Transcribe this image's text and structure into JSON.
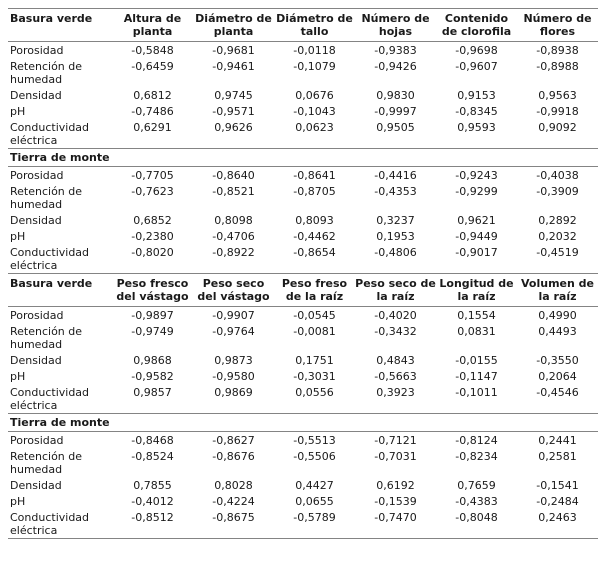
{
  "page": {
    "background": "#ffffff",
    "text_color": "#1a1a1a",
    "line_color": "#848484"
  },
  "row_labels": [
    "Porosidad",
    "Retención de humedad",
    "Densidad",
    "pH",
    "Conductividad eléctrica"
  ],
  "blocks": [
    {
      "header_title": "Basura verde",
      "columns": [
        "Altura de planta",
        "Diámetro de planta",
        "Diámetro de tallo",
        "Número de hojas",
        "Contenido de clorofila",
        "Número de flores"
      ],
      "header_section_rows": [
        [
          "-0,5848",
          "-0,9681",
          "-0,0118",
          "-0,9383",
          "-0,9698",
          "-0,8938"
        ],
        [
          "-0,6459",
          "-0,9461",
          "-0,1079",
          "-0,9426",
          "-0,9607",
          "-0,8988"
        ],
        [
          "0,6812",
          "0,9745",
          "0,0676",
          "0,9830",
          "0,9153",
          "0,9563"
        ],
        [
          "-0,7486",
          "-0,9571",
          "-0,1043",
          "-0,9997",
          "-0,8345",
          "-0,9918"
        ],
        [
          "0,6291",
          "0,9626",
          "0,0623",
          "0,9505",
          "0,9593",
          "0,9092"
        ]
      ],
      "band_title": "Tierra de monte",
      "band_section_rows": [
        [
          "-0,7705",
          "-0,8640",
          "-0,8641",
          "-0,4416",
          "-0,9243",
          "-0,4038"
        ],
        [
          "-0,7623",
          "-0,8521",
          "-0,8705",
          "-0,4353",
          "-0,9299",
          "-0,3909"
        ],
        [
          "0,6852",
          "0,8098",
          "0,8093",
          "0,3237",
          "0,9621",
          "0,2892"
        ],
        [
          "-0,2380",
          "-0,4706",
          "-0,4462",
          "0,1953",
          "-0,9449",
          "0,2032"
        ],
        [
          "-0,8020",
          "-0,8922",
          "-0,8654",
          "-0,4806",
          "-0,9017",
          "-0,4519"
        ]
      ]
    },
    {
      "header_title": "Basura verde",
      "columns": [
        "Peso fresco del vástago",
        "Peso seco del vástago",
        "Peso freso de la raíz",
        "Peso seco de la raíz",
        "Longitud de la raíz",
        "Volumen de la raíz"
      ],
      "header_section_rows": [
        [
          "-0,9897",
          "-0,9907",
          "-0,0545",
          "-0,4020",
          "0,1554",
          "0,4990"
        ],
        [
          "-0,9749",
          "-0,9764",
          "-0,0081",
          "-0,3432",
          "0,0831",
          "0,4493"
        ],
        [
          "0,9868",
          "0,9873",
          "0,1751",
          "0,4843",
          "-0,0155",
          "-0,3550"
        ],
        [
          "-0,9582",
          "-0,9580",
          "-0,3031",
          "-0,5663",
          "-0,1147",
          "0,2064"
        ],
        [
          "0,9857",
          "0,9869",
          "0,0556",
          "0,3923",
          "-0,1011",
          "-0,4546"
        ]
      ],
      "band_title": "Tierra de monte",
      "band_section_rows": [
        [
          "-0,8468",
          "-0,8627",
          "-0,5513",
          "-0,7121",
          "-0,8124",
          "0,2441"
        ],
        [
          "-0,8524",
          "-0,8676",
          "-0,5506",
          "-0,7031",
          "-0,8234",
          "0,2581"
        ],
        [
          "0,7855",
          "0,8028",
          "0,4427",
          "0,6192",
          "0,7659",
          "-0,1541"
        ],
        [
          "-0,4012",
          "-0,4224",
          "0,0655",
          "-0,1539",
          "-0,4383",
          "-0,2484"
        ],
        [
          "-0,8512",
          "-0,8675",
          "-0,5789",
          "-0,7470",
          "-0,8048",
          "0,2463"
        ]
      ]
    }
  ]
}
